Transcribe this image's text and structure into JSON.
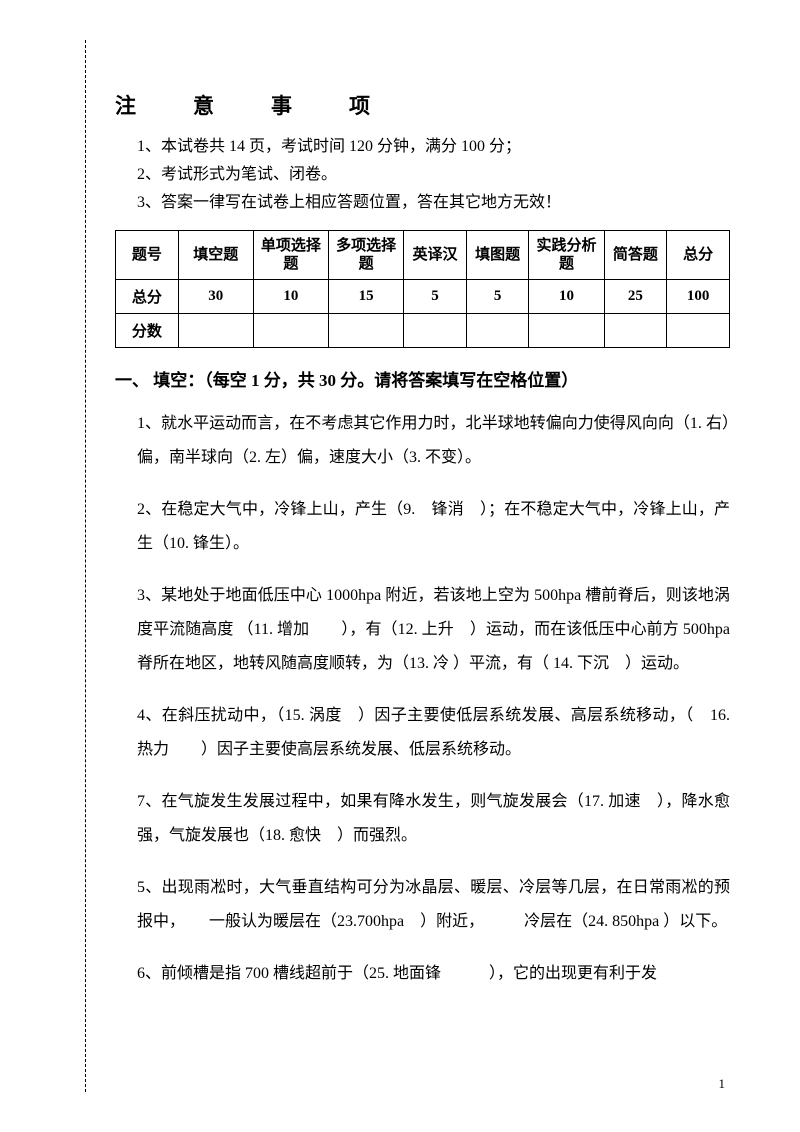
{
  "notice": {
    "title": "注　意　事　项",
    "items": [
      "1、本试卷共 14 页，考试时间 120 分钟，满分 100 分；",
      "2、考试形式为笔试、闭卷。",
      "3、答案一律写在试卷上相应答题位置，答在其它地方无效！"
    ]
  },
  "table": {
    "headers": [
      "题号",
      "填空题",
      "单项选择题",
      "多项选择题",
      "英译汉",
      "填图题",
      "实践分析题",
      "简答题",
      "总分"
    ],
    "row2_label": "总分",
    "scores": [
      "30",
      "10",
      "15",
      "5",
      "5",
      "10",
      "25",
      "100"
    ],
    "row3_label": "分数"
  },
  "section1": {
    "title": "一、 填空：（每空 1 分，共 30 分。请将答案填写在空格位置）",
    "questions": [
      "1、就水平运动而言，在不考虑其它作用力时，北半球地转偏向力使得风向向（1. 右）偏，南半球向（2. 左）偏，速度大小（3. 不变）。",
      "2、在稳定大气中，冷锋上山，产生（9.　锋消　）；在不稳定大气中，冷锋上山，产生（10. 锋生）。",
      "3、某地处于地面低压中心 1000hpa 附近，若该地上空为 500hpa 槽前脊后，则该地涡度平流随高度 （11. 增加　　），有（12. 上升　）运动，而在该低压中心前方 500hpa 脊所在地区，地转风随高度顺转，为（13. 冷 ）平流，有（ 14. 下沉　）运动。",
      "4、在斜压扰动中，（15. 涡度　）因子主要使低层系统发展、高层系统移动，（　16. 热力　　）因子主要使高层系统发展、低层系统移动。",
      "7、在气旋发生发展过程中，如果有降水发生，则气旋发展会（17. 加速　），降水愈强，气旋发展也（18. 愈快　）而强烈。",
      "5、出现雨凇时，大气垂直结构可分为冰晶层、暖层、冷层等几层，在日常雨凇的预报中，　　一般认为暖层在（23.700hpa　）附近，　　　冷层在（24. 850hpa ）以下。",
      "6、前倾槽是指 700 槽线超前于（25. 地面锋　　　），它的出现更有利于发"
    ]
  },
  "pageNum": "1"
}
